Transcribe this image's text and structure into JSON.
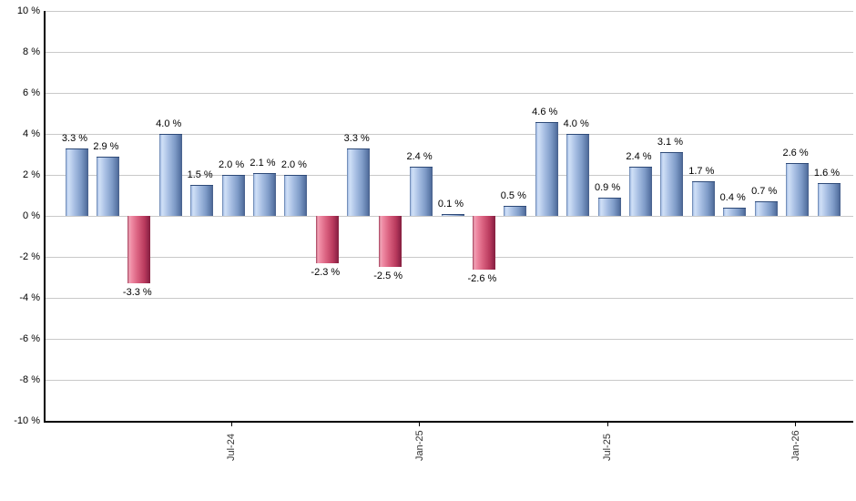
{
  "chart_data": {
    "type": "bar",
    "title": "",
    "xlabel": "",
    "ylabel": "",
    "values": [
      3.3,
      2.9,
      -3.3,
      4.0,
      1.5,
      2.0,
      2.1,
      2.0,
      -2.3,
      3.3,
      -2.5,
      2.4,
      0.1,
      -2.6,
      0.5,
      4.6,
      4.0,
      0.9,
      2.4,
      3.1,
      1.7,
      0.4,
      0.7,
      2.6,
      1.6
    ],
    "value_label_suffix": " %",
    "x_axis": {
      "ticks": [
        {
          "label": "Jul-24",
          "slot": 6
        },
        {
          "label": "Jan-25",
          "slot": 12
        },
        {
          "label": "Jul-25",
          "slot": 18
        },
        {
          "label": "Jan-26",
          "slot": 24
        }
      ],
      "label_rotation_deg": -90
    },
    "y_axis": {
      "tick_labels": [
        "10 %",
        "8 %",
        "6 %",
        "4 %",
        "2 %",
        "0 %",
        "-2 %",
        "-4 %",
        "-6 %",
        "-8 %",
        "-10 %"
      ],
      "min": -10,
      "max": 10,
      "step": 2,
      "unit": "%"
    },
    "grid": true,
    "legend": false,
    "colors": {
      "positive_bar": "#7f9cc8",
      "positive_bar_light": "#cfdff6",
      "positive_bar_dark": "#2e4a78",
      "negative_bar": "#d9607f",
      "negative_bar_light": "#efa3b6",
      "negative_bar_dark": "#87203e",
      "gridline": "#c9c9c9",
      "axis_line": "#000000",
      "value_label_text": "#000000",
      "tick_label_text": "#333333",
      "background": "#ffffff"
    }
  }
}
